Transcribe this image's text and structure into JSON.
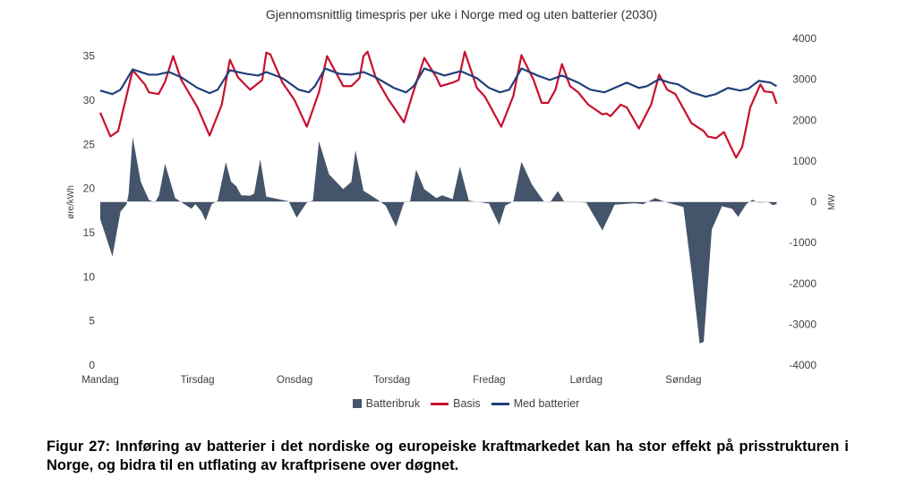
{
  "chart_data": {
    "type": "line",
    "title": "Gjennomsnittlig timespris per uke i Norge med og uten batterier (2030)",
    "xlabel": "",
    "ylabel": "øre/kWh",
    "ylabel_right": "MW",
    "x_unit": "hour of week",
    "xlim": [
      0,
      168
    ],
    "ylim": [
      0,
      37
    ],
    "ylim_right": [
      -4000,
      4000
    ],
    "x_ticks": [
      {
        "hour": 0,
        "label": "Mandag"
      },
      {
        "hour": 24,
        "label": "Tirsdag"
      },
      {
        "hour": 48,
        "label": "Onsdag"
      },
      {
        "hour": 72,
        "label": "Torsdag"
      },
      {
        "hour": 96,
        "label": "Fredag"
      },
      {
        "hour": 120,
        "label": "Lørdag"
      },
      {
        "hour": 144,
        "label": "Søndag"
      }
    ],
    "y_ticks_left": [
      0,
      5,
      10,
      15,
      20,
      25,
      30,
      35
    ],
    "y_ticks_right": [
      4000,
      3000,
      2000,
      1000,
      0,
      -1000,
      -2000,
      -3000,
      -4000
    ],
    "legend_position": "bottom",
    "grid": false,
    "series": [
      {
        "name": "Batteribruk",
        "kind": "area",
        "axis": "right",
        "color": "#44546A",
        "x": [
          0,
          3,
          5,
          6.5,
          7,
          8,
          10,
          12,
          13.5,
          14.5,
          16,
          18.5,
          20.5,
          22.5,
          23.5,
          25,
          26,
          27.5,
          29,
          31,
          32.3,
          33.6,
          34.8,
          37,
          38,
          39.5,
          41,
          46.5,
          48.5,
          51,
          52.5,
          54,
          56.5,
          60,
          62,
          63,
          65,
          68.5,
          70.5,
          73,
          75,
          76.5,
          78,
          80,
          83,
          84.4,
          87,
          88.8,
          91,
          96,
          98.5,
          100,
          102,
          104,
          106.6,
          109.5,
          111,
          113,
          114.5,
          120,
          124,
          127,
          132,
          134,
          137,
          140,
          144,
          146,
          148,
          149,
          151,
          153.5,
          156,
          157.5,
          159.5,
          161,
          162.5,
          165,
          166,
          167
        ],
        "values": [
          -425,
          -1340,
          -240,
          -60,
          200,
          1590,
          490,
          50,
          -20,
          160,
          930,
          90,
          -40,
          -170,
          -60,
          -240,
          -460,
          -60,
          30,
          970,
          490,
          380,
          160,
          150,
          200,
          1040,
          125,
          15,
          -390,
          -20,
          30,
          1480,
          670,
          310,
          490,
          1260,
          270,
          50,
          -95,
          -610,
          -20,
          15,
          785,
          310,
          90,
          160,
          65,
          860,
          30,
          -45,
          -570,
          -95,
          15,
          980,
          420,
          15,
          -20,
          260,
          15,
          -20,
          -700,
          -70,
          -35,
          -60,
          90,
          -20,
          -130,
          -1710,
          -3470,
          -3430,
          -680,
          -110,
          -170,
          -370,
          -60,
          50,
          -20,
          -10,
          -80,
          -60
        ]
      },
      {
        "name": "Basis",
        "kind": "line",
        "axis": "left",
        "color": "#C8102E",
        "x": [
          0,
          2.5,
          4.4,
          8,
          11,
          12,
          14.4,
          16,
          18,
          20,
          24,
          27,
          30,
          32,
          34,
          37,
          40,
          41,
          42,
          43,
          45,
          48,
          51,
          54,
          56,
          58,
          60,
          62,
          64,
          65,
          66,
          68,
          71,
          75,
          77,
          80,
          83,
          84,
          87,
          88.5,
          90,
          93,
          95,
          99,
          102,
          104,
          107,
          109,
          110.6,
          112.4,
          114,
          116,
          118,
          120.5,
          124,
          125,
          126,
          128.5,
          130,
          133,
          136,
          138,
          140,
          142,
          146,
          149,
          150,
          152,
          154,
          155,
          157,
          158.5,
          160.5,
          163,
          164,
          166,
          167
        ],
        "values": [
          28.6,
          25.9,
          26.5,
          33.4,
          31.8,
          30.9,
          30.7,
          32.1,
          35.0,
          32.3,
          29.2,
          26.0,
          29.5,
          34.6,
          32.6,
          31.2,
          32.3,
          35.4,
          35.2,
          34.1,
          32.0,
          30.0,
          27.0,
          30.9,
          35.0,
          33.3,
          31.6,
          31.6,
          32.5,
          35.0,
          35.5,
          32.6,
          30.2,
          27.5,
          30.5,
          34.8,
          32.6,
          31.6,
          32.0,
          32.3,
          35.5,
          31.4,
          30.4,
          27.0,
          30.5,
          35.1,
          32.3,
          29.7,
          29.7,
          31.2,
          34.1,
          31.6,
          30.9,
          29.5,
          28.4,
          28.5,
          28.2,
          29.5,
          29.2,
          26.8,
          29.5,
          32.9,
          31.2,
          30.7,
          27.4,
          26.5,
          25.9,
          25.7,
          26.4,
          25.4,
          23.5,
          24.7,
          29.2,
          31.8,
          31.0,
          30.9,
          29.6
        ]
      },
      {
        "name": "Med batterier",
        "kind": "line",
        "axis": "left",
        "color": "#203F7A",
        "x": [
          0,
          3,
          5,
          8,
          12,
          14,
          17,
          20,
          24,
          27,
          29,
          32,
          36,
          39,
          41,
          45,
          49,
          51.5,
          53,
          55.5,
          59,
          62,
          65,
          68,
          72.5,
          75.5,
          77.4,
          80,
          85,
          89,
          93,
          96,
          98.7,
          101,
          104,
          108,
          111,
          114,
          118,
          121,
          124.5,
          127,
          130,
          133,
          135,
          138,
          140.5,
          142.7,
          146,
          149.5,
          152,
          155,
          158,
          160,
          162.6,
          165.5,
          167
        ],
        "values": [
          31.1,
          30.7,
          31.2,
          33.5,
          32.9,
          32.9,
          33.2,
          32.6,
          31.4,
          30.8,
          31.2,
          33.4,
          33.0,
          32.8,
          33.2,
          32.5,
          31.2,
          30.9,
          31.6,
          33.6,
          33.0,
          32.9,
          33.2,
          32.6,
          31.4,
          30.9,
          31.6,
          33.6,
          32.8,
          33.3,
          32.5,
          31.4,
          30.9,
          31.2,
          33.6,
          32.8,
          32.3,
          32.8,
          32.0,
          31.2,
          30.9,
          31.4,
          32.0,
          31.4,
          31.6,
          32.4,
          32.0,
          31.8,
          30.9,
          30.4,
          30.7,
          31.4,
          31.1,
          31.3,
          32.2,
          32.0,
          31.6
        ]
      }
    ]
  },
  "caption": "Figur 27: Innføring av batterier i det nordiske og europeiske kraftmarkedet kan ha stor effekt på prisstrukturen i Norge, og bidra til en utflating av kraftprisene over døgnet."
}
